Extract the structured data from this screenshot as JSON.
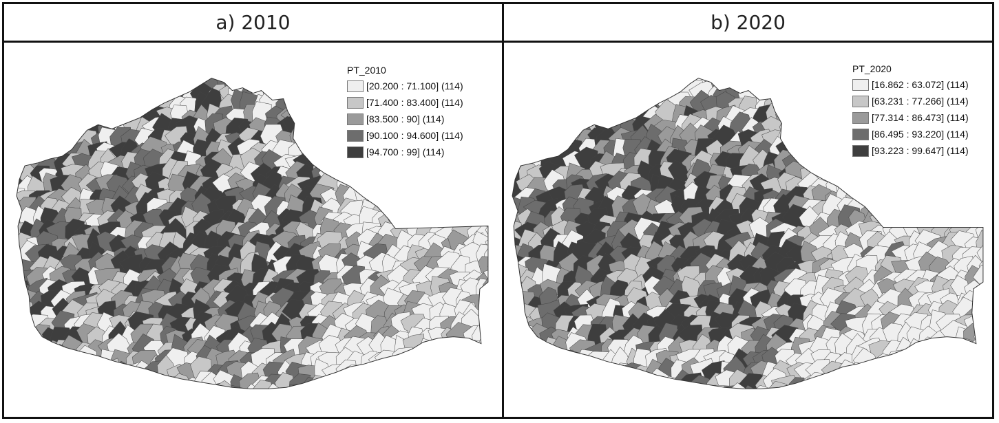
{
  "panels": [
    {
      "title": "a) 2010",
      "legend": {
        "title": "PT_2010",
        "classes": [
          {
            "label": "[20.200 : 71.100] (114)",
            "color": "#efefef"
          },
          {
            "label": "[71.400 : 83.400] (114)",
            "color": "#c7c7c7"
          },
          {
            "label": "[83.500 : 90] (114)",
            "color": "#9a9a9a"
          },
          {
            "label": "[90.100 : 94.600] (114)",
            "color": "#6d6d6d"
          },
          {
            "label": "[94.700 : 99] (114)",
            "color": "#3e3e3e"
          }
        ]
      }
    },
    {
      "title": "b) 2020",
      "legend": {
        "title": "PT_2020",
        "classes": [
          {
            "label": "[16.862 : 63.072] (114)",
            "color": "#efefef"
          },
          {
            "label": "[63.231 : 77.266] (114)",
            "color": "#c7c7c7"
          },
          {
            "label": "[77.314 : 86.473] (114)",
            "color": "#9a9a9a"
          },
          {
            "label": "[86.495 : 93.220] (114)",
            "color": "#6d6d6d"
          },
          {
            "label": "[93.223 : 99.647] (114)",
            "color": "#3e3e3e"
          }
        ]
      }
    }
  ]
}
